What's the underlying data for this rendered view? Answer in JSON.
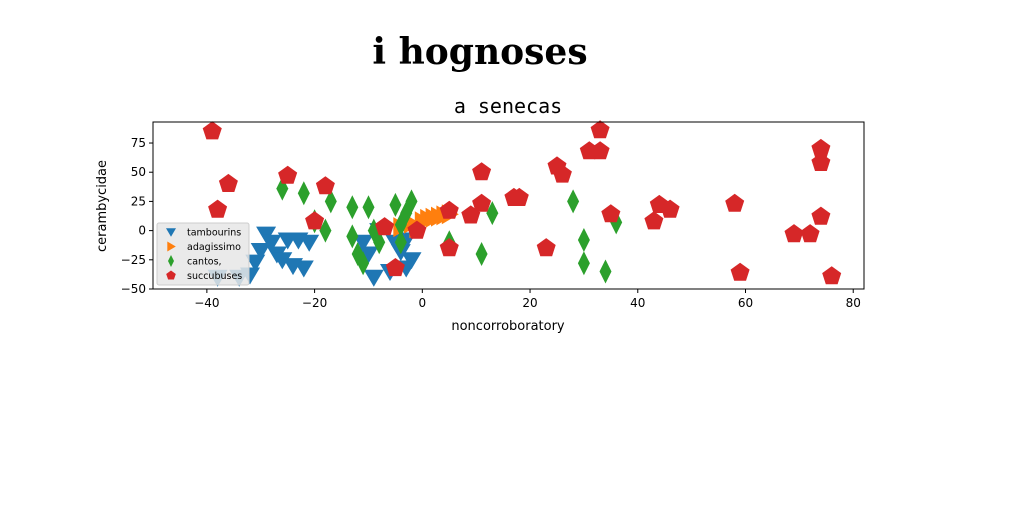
{
  "chart_data": {
    "type": "scatter",
    "suptitle": "i hognoses",
    "title": "a senecas",
    "xlabel": "noncorroboratory",
    "ylabel": "cerambycidae",
    "xlim": [
      -50,
      82
    ],
    "ylim": [
      -50,
      93
    ],
    "xticks": [
      -40,
      -20,
      0,
      20,
      40,
      60,
      80
    ],
    "yticks": [
      -50,
      -25,
      0,
      25,
      50,
      75
    ],
    "legend_position": "lower-left",
    "series": [
      {
        "name": "tambourins",
        "marker": "triangle-down",
        "color": "#1f77b4",
        "points": [
          [
            -38,
            -40
          ],
          [
            -34,
            -40
          ],
          [
            -32,
            -38
          ],
          [
            -31,
            -27
          ],
          [
            -30,
            -17
          ],
          [
            -29,
            -3
          ],
          [
            -28,
            -10
          ],
          [
            -27,
            -20
          ],
          [
            -26,
            -25
          ],
          [
            -25,
            -8
          ],
          [
            -24,
            -30
          ],
          [
            -23,
            -8
          ],
          [
            -22,
            -32
          ],
          [
            -21,
            -10
          ],
          [
            -9,
            -40
          ],
          [
            -8,
            0
          ],
          [
            -6,
            -35
          ],
          [
            -3,
            -32
          ],
          [
            -2,
            -25
          ],
          [
            -3,
            -8
          ],
          [
            -10,
            -20
          ],
          [
            -11,
            -10
          ],
          [
            -5,
            -10
          ],
          [
            -4,
            -18
          ]
        ]
      },
      {
        "name": "adagissimo",
        "marker": "triangle-right",
        "color": "#ff7f0e",
        "points": [
          [
            -4,
            3
          ],
          [
            -2,
            6
          ],
          [
            0,
            8
          ],
          [
            1,
            10
          ],
          [
            2,
            11
          ],
          [
            3,
            12
          ],
          [
            4,
            13
          ],
          [
            5,
            14
          ],
          [
            -1,
            2
          ]
        ]
      },
      {
        "name": "cantos,",
        "marker": "diamond",
        "color": "#2ca02c",
        "points": [
          [
            -26,
            36
          ],
          [
            -22,
            32
          ],
          [
            -20,
            8
          ],
          [
            -18,
            0
          ],
          [
            -17,
            25
          ],
          [
            -13,
            20
          ],
          [
            -13,
            -5
          ],
          [
            -12,
            -20
          ],
          [
            -11,
            -28
          ],
          [
            -10,
            20
          ],
          [
            -9,
            0
          ],
          [
            -8,
            -10
          ],
          [
            -5,
            22
          ],
          [
            -4,
            5
          ],
          [
            -4,
            -10
          ],
          [
            -3,
            15
          ],
          [
            -2,
            25
          ],
          [
            5,
            -10
          ],
          [
            11,
            -20
          ],
          [
            13,
            15
          ],
          [
            28,
            25
          ],
          [
            30,
            -8
          ],
          [
            30,
            -28
          ],
          [
            34,
            -35
          ],
          [
            36,
            7
          ]
        ]
      },
      {
        "name": "succubuses",
        "marker": "pentagon",
        "color": "#d62728",
        "points": [
          [
            -39,
            85
          ],
          [
            -38,
            18
          ],
          [
            -36,
            40
          ],
          [
            -25,
            47
          ],
          [
            -20,
            8
          ],
          [
            -18,
            38
          ],
          [
            -7,
            3
          ],
          [
            -5,
            -32
          ],
          [
            -1,
            0
          ],
          [
            5,
            17
          ],
          [
            5,
            -15
          ],
          [
            9,
            13
          ],
          [
            11,
            50
          ],
          [
            11,
            23
          ],
          [
            17,
            28
          ],
          [
            18,
            28
          ],
          [
            23,
            -15
          ],
          [
            25,
            55
          ],
          [
            26,
            48
          ],
          [
            31,
            68
          ],
          [
            33,
            68
          ],
          [
            33,
            86
          ],
          [
            35,
            14
          ],
          [
            43,
            8
          ],
          [
            44,
            22
          ],
          [
            46,
            18
          ],
          [
            58,
            23
          ],
          [
            59,
            -36
          ],
          [
            69,
            -3
          ],
          [
            72,
            -3
          ],
          [
            74,
            70
          ],
          [
            74,
            58
          ],
          [
            74,
            12
          ],
          [
            76,
            -39
          ]
        ]
      }
    ]
  }
}
